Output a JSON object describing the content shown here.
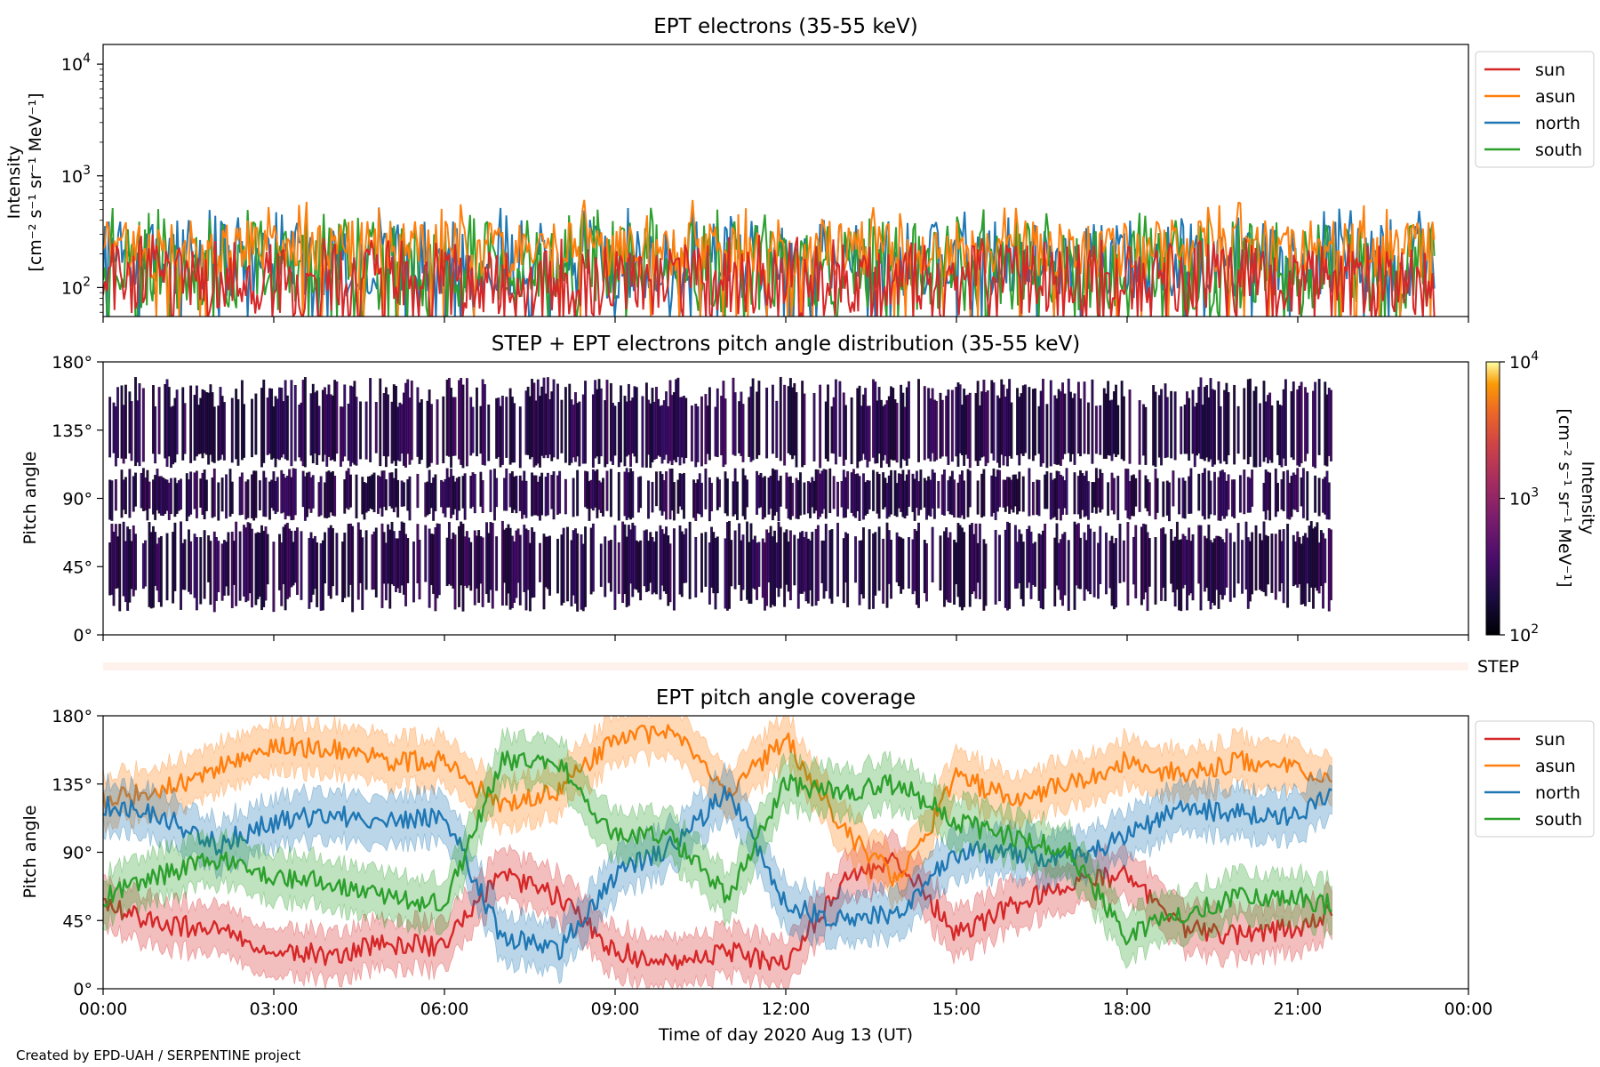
{
  "credit": "Created by EPD-UAH / SERPENTINE project",
  "colors": {
    "sun": "#d62728",
    "asun": "#ff7f0e",
    "north": "#1f77b4",
    "south": "#2ca02c"
  },
  "x_ticks": [
    "00:00",
    "03:00",
    "06:00",
    "09:00",
    "12:00",
    "15:00",
    "18:00",
    "21:00",
    "00:00"
  ],
  "x_label": "Time of day 2020 Aug 13 (UT)",
  "step_label": "STEP",
  "legend": [
    "sun",
    "asun",
    "north",
    "south"
  ],
  "chart_data": [
    {
      "type": "line",
      "title": "EPT electrons (35-55 keV)",
      "ylabel_lines": [
        "Intensity",
        "[cm⁻² s⁻¹ sr⁻¹ MeV⁻¹]"
      ],
      "y_scale": "log",
      "ylim": [
        55,
        15000
      ],
      "y_ticks": [
        {
          "base": "10",
          "exp": "4",
          "value": 10000
        },
        {
          "base": "10",
          "exp": "3",
          "value": 1000
        },
        {
          "base": "10",
          "exp": "2",
          "value": 100
        }
      ],
      "xlim_hours": [
        0,
        24
      ],
      "data_extent_hours": [
        0,
        23.4
      ],
      "legend_location": "upper right, outside",
      "series": [
        {
          "name": "sun",
          "typical_range": [
            55,
            250
          ],
          "peak": 300
        },
        {
          "name": "asun",
          "typical_range": [
            120,
            400
          ],
          "peak": 620
        },
        {
          "name": "north",
          "typical_range": [
            80,
            400
          ],
          "peak": 520
        },
        {
          "name": "south",
          "typical_range": [
            60,
            400
          ],
          "peak": 520
        }
      ]
    },
    {
      "type": "heatmap",
      "title": "STEP + EPT electrons pitch angle distribution (35-55 keV)",
      "ylabel": "Pitch angle",
      "y_ticks": [
        "0°",
        "45°",
        "90°",
        "135°",
        "180°"
      ],
      "ylim": [
        0,
        180
      ],
      "xlim_hours": [
        0,
        24
      ],
      "data_extent_hours": [
        0.1,
        21.6
      ],
      "colorbar": {
        "label_lines": [
          "Intensity",
          "[cm⁻² s⁻¹ sr⁻¹ MeV⁻¹]"
        ],
        "scale": "log",
        "range": [
          100,
          10000
        ],
        "ticks": [
          {
            "base": "10",
            "exp": "4"
          },
          {
            "base": "10",
            "exp": "3"
          },
          {
            "base": "10",
            "exp": "2"
          }
        ],
        "colormap": "inferno"
      }
    },
    {
      "type": "line",
      "title": "EPT pitch angle coverage",
      "ylabel": "Pitch angle",
      "y_ticks": [
        "0°",
        "45°",
        "90°",
        "135°",
        "180°"
      ],
      "ylim": [
        0,
        180
      ],
      "xlim_hours": [
        0,
        24
      ],
      "data_extent_hours": [
        0,
        21.6
      ],
      "legend_location": "upper right, outside",
      "series": [
        {
          "name": "sun",
          "hours": [
            0,
            1,
            2,
            3,
            4,
            5,
            6,
            7,
            8,
            9,
            10,
            11,
            12,
            13,
            14,
            15,
            16,
            17,
            18,
            19,
            20,
            21,
            21.6
          ],
          "values": [
            55,
            42,
            40,
            25,
            22,
            30,
            28,
            75,
            60,
            25,
            15,
            25,
            15,
            70,
            85,
            35,
            55,
            70,
            75,
            40,
            35,
            40,
            50
          ]
        },
        {
          "name": "asun",
          "hours": [
            0,
            1,
            2,
            3,
            4,
            5,
            6,
            7,
            8,
            9,
            10,
            11,
            12,
            13,
            14,
            15,
            16,
            17,
            18,
            19,
            20,
            21,
            21.6
          ],
          "values": [
            125,
            130,
            145,
            160,
            158,
            150,
            150,
            120,
            130,
            165,
            170,
            130,
            165,
            105,
            70,
            140,
            125,
            135,
            150,
            140,
            150,
            145,
            135
          ]
        },
        {
          "name": "north",
          "hours": [
            0,
            1,
            2,
            3,
            4,
            5,
            6,
            7,
            8,
            9,
            10,
            11,
            12,
            13,
            14,
            15,
            16,
            17,
            18,
            19,
            20,
            21,
            21.6
          ],
          "values": [
            120,
            115,
            95,
            110,
            115,
            110,
            115,
            35,
            25,
            75,
            95,
            130,
            55,
            45,
            50,
            90,
            90,
            85,
            100,
            120,
            115,
            115,
            130
          ]
        },
        {
          "name": "south",
          "hours": [
            0,
            1,
            2,
            3,
            4,
            5,
            6,
            7,
            8,
            9,
            10,
            11,
            12,
            13,
            14,
            15,
            16,
            17,
            18,
            19,
            20,
            21,
            21.6
          ],
          "values": [
            60,
            75,
            85,
            75,
            70,
            60,
            55,
            150,
            150,
            100,
            100,
            60,
            135,
            130,
            135,
            110,
            100,
            90,
            35,
            50,
            60,
            60,
            55
          ]
        }
      ]
    }
  ]
}
